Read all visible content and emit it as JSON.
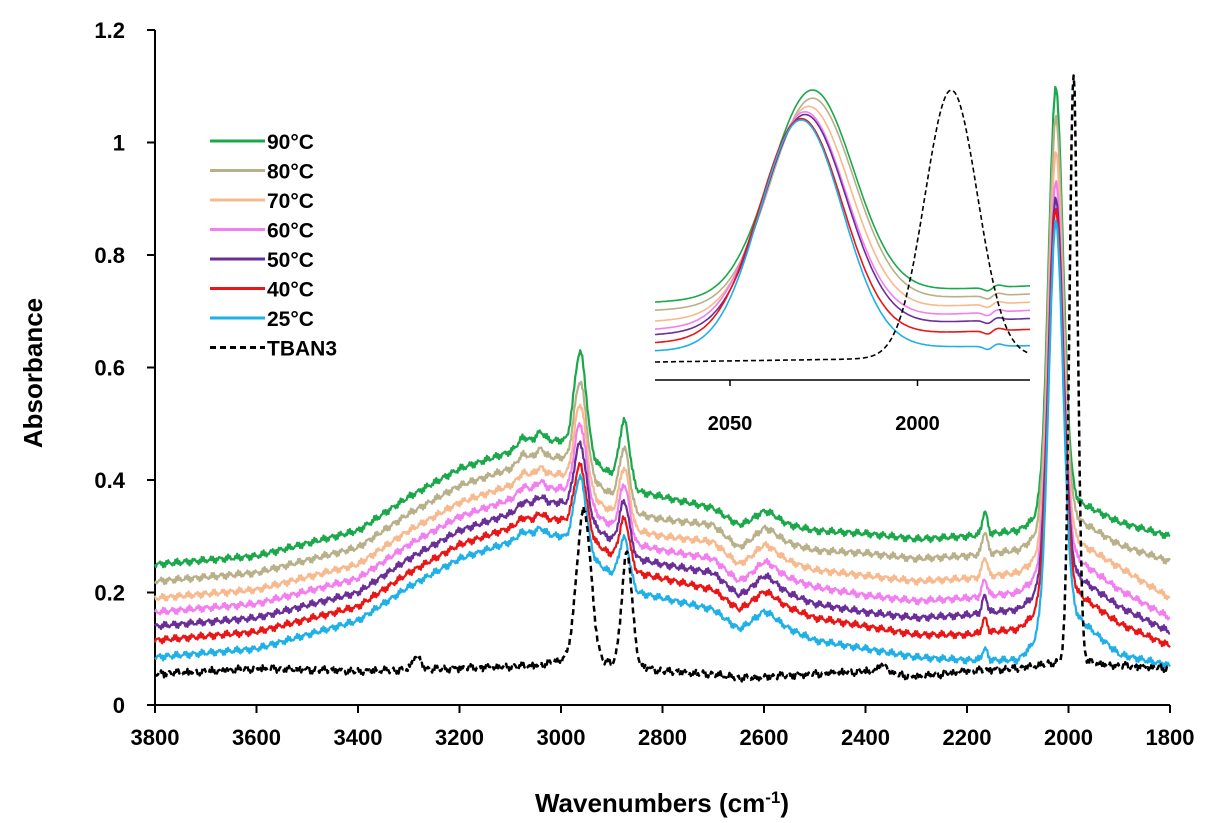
{
  "chart_data": [
    {
      "type": "line",
      "xlabel": "Wavenumbers",
      "xlabel_unit": "(cm",
      "xlabel_unit_sup": "-1",
      "xlabel_unit_close": ")",
      "ylabel": "Absorbance",
      "xlim": [
        3800,
        1800
      ],
      "ylim": [
        0,
        1.2
      ],
      "x_reversed": true,
      "x_ticks": [
        "3800",
        "3600",
        "3400",
        "3200",
        "3000",
        "2800",
        "2600",
        "2400",
        "2200",
        "2000",
        "1800"
      ],
      "y_ticks": [
        "0",
        "0.2",
        "0.4",
        "0.6",
        "0.8",
        "1",
        "1.2"
      ],
      "legend_position": "upper-left",
      "grid": false,
      "series": [
        {
          "name": "90°C",
          "color": "#1aa84a",
          "dashed": false,
          "baseline": [
            [
              3800,
              0.25
            ],
            [
              3600,
              0.265
            ],
            [
              3400,
              0.31
            ],
            [
              3300,
              0.37
            ],
            [
              3200,
              0.42
            ],
            [
              3100,
              0.45
            ],
            [
              3050,
              0.47
            ],
            [
              3000,
              0.47
            ],
            [
              2850,
              0.38
            ],
            [
              2800,
              0.37
            ],
            [
              2700,
              0.35
            ],
            [
              2650,
              0.32
            ],
            [
              2600,
              0.33
            ],
            [
              2500,
              0.31
            ],
            [
              2400,
              0.305
            ],
            [
              2300,
              0.295
            ],
            [
              2200,
              0.3
            ],
            [
              2100,
              0.31
            ],
            [
              2000,
              0.37
            ],
            [
              1900,
              0.325
            ],
            [
              1800,
              0.3
            ]
          ],
          "peaks": [
            [
              2962,
              0.18,
              12
            ],
            [
              2875,
              0.11,
              10
            ],
            [
              3075,
              0.015,
              10
            ],
            [
              3040,
              0.015,
              8
            ],
            [
              2595,
              0.015,
              20
            ],
            [
              2165,
              0.04,
              5
            ],
            [
              2025,
              0.74,
              14
            ]
          ]
        },
        {
          "name": "80°C",
          "color": "#b8b089",
          "dashed": false,
          "baseline": [
            [
              3800,
              0.22
            ],
            [
              3600,
              0.235
            ],
            [
              3400,
              0.28
            ],
            [
              3300,
              0.34
            ],
            [
              3200,
              0.39
            ],
            [
              3100,
              0.42
            ],
            [
              3050,
              0.44
            ],
            [
              3000,
              0.44
            ],
            [
              2850,
              0.34
            ],
            [
              2800,
              0.33
            ],
            [
              2700,
              0.32
            ],
            [
              2650,
              0.28
            ],
            [
              2600,
              0.3
            ],
            [
              2500,
              0.275
            ],
            [
              2400,
              0.27
            ],
            [
              2300,
              0.26
            ],
            [
              2200,
              0.265
            ],
            [
              2100,
              0.275
            ],
            [
              2000,
              0.34
            ],
            [
              1900,
              0.285
            ],
            [
              1800,
              0.255
            ]
          ],
          "peaks": [
            [
              2962,
              0.16,
              12
            ],
            [
              2875,
              0.1,
              10
            ],
            [
              3075,
              0.015,
              10
            ],
            [
              3040,
              0.015,
              8
            ],
            [
              2595,
              0.015,
              20
            ],
            [
              2165,
              0.04,
              5
            ],
            [
              2025,
              0.72,
              14
            ]
          ]
        },
        {
          "name": "70°C",
          "color": "#f7b98e",
          "dashed": false,
          "baseline": [
            [
              3800,
              0.19
            ],
            [
              3600,
              0.205
            ],
            [
              3400,
              0.25
            ],
            [
              3300,
              0.31
            ],
            [
              3200,
              0.36
            ],
            [
              3100,
              0.39
            ],
            [
              3050,
              0.41
            ],
            [
              3000,
              0.41
            ],
            [
              2850,
              0.31
            ],
            [
              2800,
              0.3
            ],
            [
              2700,
              0.29
            ],
            [
              2650,
              0.25
            ],
            [
              2600,
              0.27
            ],
            [
              2500,
              0.24
            ],
            [
              2400,
              0.23
            ],
            [
              2300,
              0.22
            ],
            [
              2200,
              0.225
            ],
            [
              2100,
              0.235
            ],
            [
              2000,
              0.3
            ],
            [
              1900,
              0.245
            ],
            [
              1800,
              0.19
            ]
          ],
          "peaks": [
            [
              2962,
              0.15,
              12
            ],
            [
              2875,
              0.095,
              10
            ],
            [
              3075,
              0.012,
              10
            ],
            [
              3040,
              0.012,
              8
            ],
            [
              2595,
              0.015,
              20
            ],
            [
              2165,
              0.035,
              5
            ],
            [
              2025,
              0.7,
              14
            ]
          ]
        },
        {
          "name": "60°C",
          "color": "#f27ef0",
          "dashed": false,
          "baseline": [
            [
              3800,
              0.165
            ],
            [
              3600,
              0.18
            ],
            [
              3400,
              0.225
            ],
            [
              3300,
              0.285
            ],
            [
              3200,
              0.335
            ],
            [
              3100,
              0.365
            ],
            [
              3050,
              0.385
            ],
            [
              3000,
              0.385
            ],
            [
              2850,
              0.285
            ],
            [
              2800,
              0.275
            ],
            [
              2700,
              0.26
            ],
            [
              2650,
              0.22
            ],
            [
              2600,
              0.24
            ],
            [
              2500,
              0.21
            ],
            [
              2400,
              0.195
            ],
            [
              2300,
              0.185
            ],
            [
              2200,
              0.19
            ],
            [
              2100,
              0.2
            ],
            [
              2000,
              0.27
            ],
            [
              1900,
              0.205
            ],
            [
              1800,
              0.155
            ]
          ],
          "peaks": [
            [
              2962,
              0.14,
              12
            ],
            [
              2875,
              0.09,
              10
            ],
            [
              3075,
              0.012,
              10
            ],
            [
              3040,
              0.012,
              8
            ],
            [
              2595,
              0.015,
              20
            ],
            [
              2165,
              0.03,
              5
            ],
            [
              2025,
              0.68,
              14
            ]
          ]
        },
        {
          "name": "50°C",
          "color": "#6a2e99",
          "dashed": false,
          "baseline": [
            [
              3800,
              0.14
            ],
            [
              3600,
              0.155
            ],
            [
              3400,
              0.2
            ],
            [
              3300,
              0.26
            ],
            [
              3200,
              0.31
            ],
            [
              3100,
              0.34
            ],
            [
              3050,
              0.36
            ],
            [
              3000,
              0.36
            ],
            [
              2850,
              0.26
            ],
            [
              2800,
              0.25
            ],
            [
              2700,
              0.235
            ],
            [
              2650,
              0.195
            ],
            [
              2600,
              0.215
            ],
            [
              2500,
              0.18
            ],
            [
              2400,
              0.165
            ],
            [
              2300,
              0.155
            ],
            [
              2200,
              0.16
            ],
            [
              2100,
              0.17
            ],
            [
              2000,
              0.24
            ],
            [
              1900,
              0.175
            ],
            [
              1800,
              0.13
            ]
          ],
          "peaks": [
            [
              2962,
              0.13,
              12
            ],
            [
              2875,
              0.085,
              10
            ],
            [
              3075,
              0.01,
              10
            ],
            [
              3040,
              0.01,
              8
            ],
            [
              2595,
              0.015,
              20
            ],
            [
              2165,
              0.03,
              5
            ],
            [
              2025,
              0.68,
              14
            ]
          ]
        },
        {
          "name": "40°C",
          "color": "#e81616",
          "dashed": false,
          "baseline": [
            [
              3800,
              0.115
            ],
            [
              3600,
              0.13
            ],
            [
              3400,
              0.175
            ],
            [
              3300,
              0.235
            ],
            [
              3200,
              0.285
            ],
            [
              3100,
              0.315
            ],
            [
              3050,
              0.33
            ],
            [
              3000,
              0.33
            ],
            [
              2850,
              0.235
            ],
            [
              2800,
              0.225
            ],
            [
              2700,
              0.205
            ],
            [
              2650,
              0.17
            ],
            [
              2600,
              0.19
            ],
            [
              2500,
              0.155
            ],
            [
              2400,
              0.14
            ],
            [
              2300,
              0.125
            ],
            [
              2200,
              0.125
            ],
            [
              2100,
              0.135
            ],
            [
              2000,
              0.21
            ],
            [
              1900,
              0.145
            ],
            [
              1800,
              0.105
            ]
          ],
          "peaks": [
            [
              2962,
              0.12,
              12
            ],
            [
              2875,
              0.08,
              10
            ],
            [
              3075,
              0.01,
              10
            ],
            [
              3040,
              0.01,
              8
            ],
            [
              2595,
              0.012,
              20
            ],
            [
              2165,
              0.025,
              5
            ],
            [
              2025,
              0.69,
              14
            ]
          ]
        },
        {
          "name": "25°C",
          "color": "#1fb0e8",
          "dashed": false,
          "baseline": [
            [
              3800,
              0.085
            ],
            [
              3600,
              0.1
            ],
            [
              3400,
              0.15
            ],
            [
              3300,
              0.21
            ],
            [
              3200,
              0.26
            ],
            [
              3100,
              0.29
            ],
            [
              3050,
              0.305
            ],
            [
              3000,
              0.3
            ],
            [
              2850,
              0.2
            ],
            [
              2800,
              0.19
            ],
            [
              2700,
              0.17
            ],
            [
              2650,
              0.135
            ],
            [
              2600,
              0.155
            ],
            [
              2500,
              0.115
            ],
            [
              2400,
              0.1
            ],
            [
              2300,
              0.085
            ],
            [
              2200,
              0.08
            ],
            [
              2100,
              0.08
            ],
            [
              2000,
              0.17
            ],
            [
              1900,
              0.09
            ],
            [
              1800,
              0.07
            ]
          ],
          "peaks": [
            [
              2962,
              0.13,
              12
            ],
            [
              2875,
              0.08,
              10
            ],
            [
              3075,
              0.01,
              10
            ],
            [
              3040,
              0.01,
              8
            ],
            [
              2595,
              0.012,
              20
            ],
            [
              2165,
              0.02,
              5
            ],
            [
              2025,
              0.71,
              14
            ]
          ]
        },
        {
          "name": "TBAN3",
          "color": "#000000",
          "dashed": true,
          "baseline": [
            [
              3800,
              0.055
            ],
            [
              3600,
              0.065
            ],
            [
              3400,
              0.06
            ],
            [
              3200,
              0.065
            ],
            [
              3050,
              0.07
            ],
            [
              3000,
              0.08
            ],
            [
              2850,
              0.07
            ],
            [
              2800,
              0.06
            ],
            [
              2700,
              0.055
            ],
            [
              2650,
              0.048
            ],
            [
              2600,
              0.05
            ],
            [
              2400,
              0.06
            ],
            [
              2300,
              0.05
            ],
            [
              2200,
              0.06
            ],
            [
              2100,
              0.065
            ],
            [
              2000,
              0.08
            ],
            [
              1900,
              0.07
            ],
            [
              1800,
              0.065
            ]
          ],
          "peaks": [
            [
              2955,
              0.27,
              14
            ],
            [
              2870,
              0.2,
              10
            ],
            [
              3285,
              0.025,
              8
            ],
            [
              2365,
              0.015,
              10
            ],
            [
              1990,
              1.04,
              8
            ]
          ]
        }
      ]
    },
    {
      "type": "line",
      "x_ticks": [
        "2050",
        "2000"
      ],
      "xlim": [
        2070,
        1970
      ],
      "x_reversed": true,
      "series_peaks": [
        {
          "name": "90°C",
          "center": 2028,
          "height": 1.0,
          "base_left": 0.22,
          "base_right": 0.28
        },
        {
          "name": "80°C",
          "center": 2028,
          "height": 0.97,
          "base_left": 0.19,
          "base_right": 0.25
        },
        {
          "name": "70°C",
          "center": 2029,
          "height": 0.94,
          "base_left": 0.15,
          "base_right": 0.22
        },
        {
          "name": "60°C",
          "center": 2030,
          "height": 0.92,
          "base_left": 0.12,
          "base_right": 0.19
        },
        {
          "name": "50°C",
          "center": 2030,
          "height": 0.91,
          "base_left": 0.1,
          "base_right": 0.16
        },
        {
          "name": "40°C",
          "center": 2031,
          "height": 0.895,
          "base_left": 0.07,
          "base_right": 0.12
        },
        {
          "name": "25°C",
          "center": 2031,
          "height": 0.89,
          "base_left": 0.04,
          "base_right": 0.06
        },
        {
          "name": "TBAN3",
          "center": 1991,
          "height": 1.0,
          "base_left": 0.0,
          "base_right": 0.02
        }
      ]
    }
  ]
}
